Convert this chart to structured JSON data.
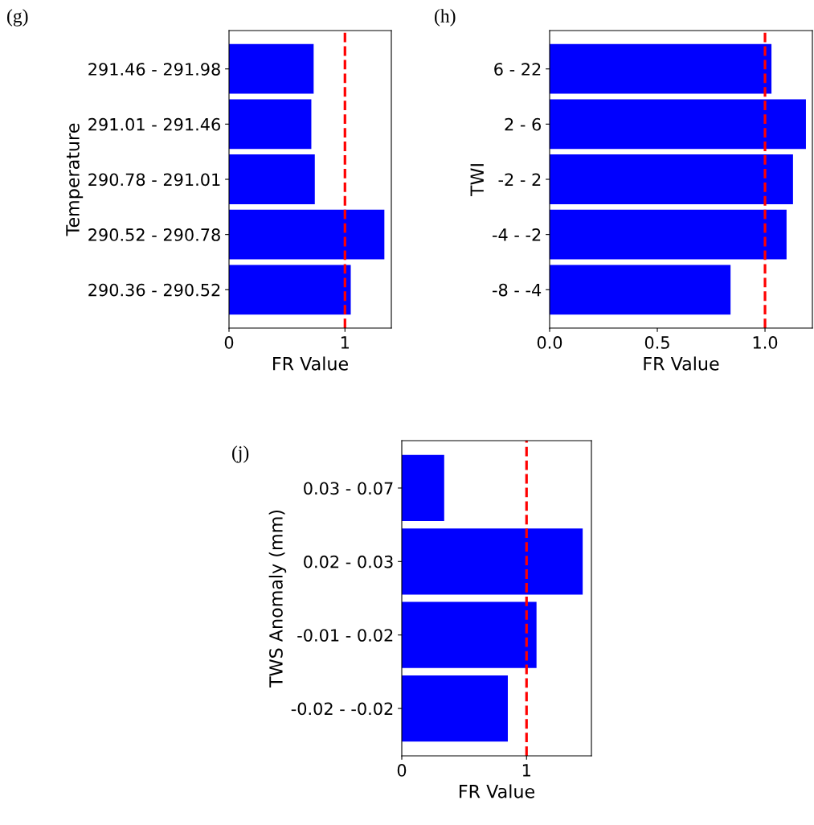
{
  "chart_data": [
    {
      "type": "bar",
      "orientation": "horizontal",
      "title": "(g)",
      "xlabel": "FR Value",
      "ylabel": "Temperature",
      "categories": [
        "291.46 - 291.98",
        "291.01 - 291.46",
        "290.78 - 291.01",
        "290.52 - 290.78",
        "290.36 - 290.52"
      ],
      "values": [
        0.73,
        0.71,
        0.74,
        1.34,
        1.05
      ],
      "color": "#0000ff",
      "xlim": [
        0,
        1.4
      ],
      "xticks": [
        0,
        1
      ],
      "ref_lines": [
        {
          "axis": "x",
          "value": 1,
          "color": "#ff0000",
          "line_style": "dashed"
        }
      ],
      "grid": false
    },
    {
      "type": "bar",
      "orientation": "horizontal",
      "title": "(h)",
      "xlabel": "FR Value",
      "ylabel": "TWI",
      "categories": [
        "6 - 22",
        "2 - 6",
        "-2 - 2",
        "-4 - -2",
        "-8 - -4"
      ],
      "values": [
        1.03,
        1.19,
        1.13,
        1.1,
        0.84
      ],
      "color": "#0000ff",
      "xlim": [
        0,
        1.22
      ],
      "xticks": [
        {
          "value": 0,
          "label": "0.0"
        },
        {
          "value": 0.5,
          "label": "0.5"
        },
        {
          "value": 1,
          "label": "1.0"
        }
      ],
      "ref_lines": [
        {
          "axis": "x",
          "value": 1,
          "color": "#ff0000",
          "line_style": "dashed"
        }
      ],
      "grid": false
    },
    {
      "type": "bar",
      "orientation": "horizontal",
      "title": "(j)",
      "xlabel": "FR Value",
      "ylabel": "TWS Anomaly (mm)",
      "categories": [
        "0.03 - 0.07",
        "0.02 - 0.03",
        "-0.01 - 0.02",
        "-0.02 - -0.02"
      ],
      "values": [
        0.34,
        1.45,
        1.08,
        0.85
      ],
      "color": "#0000ff",
      "xlim": [
        0,
        1.52
      ],
      "xticks": [
        0,
        1
      ],
      "ref_lines": [
        {
          "axis": "x",
          "value": 1,
          "color": "#ff0000",
          "line_style": "dashed"
        }
      ],
      "grid": false
    }
  ]
}
